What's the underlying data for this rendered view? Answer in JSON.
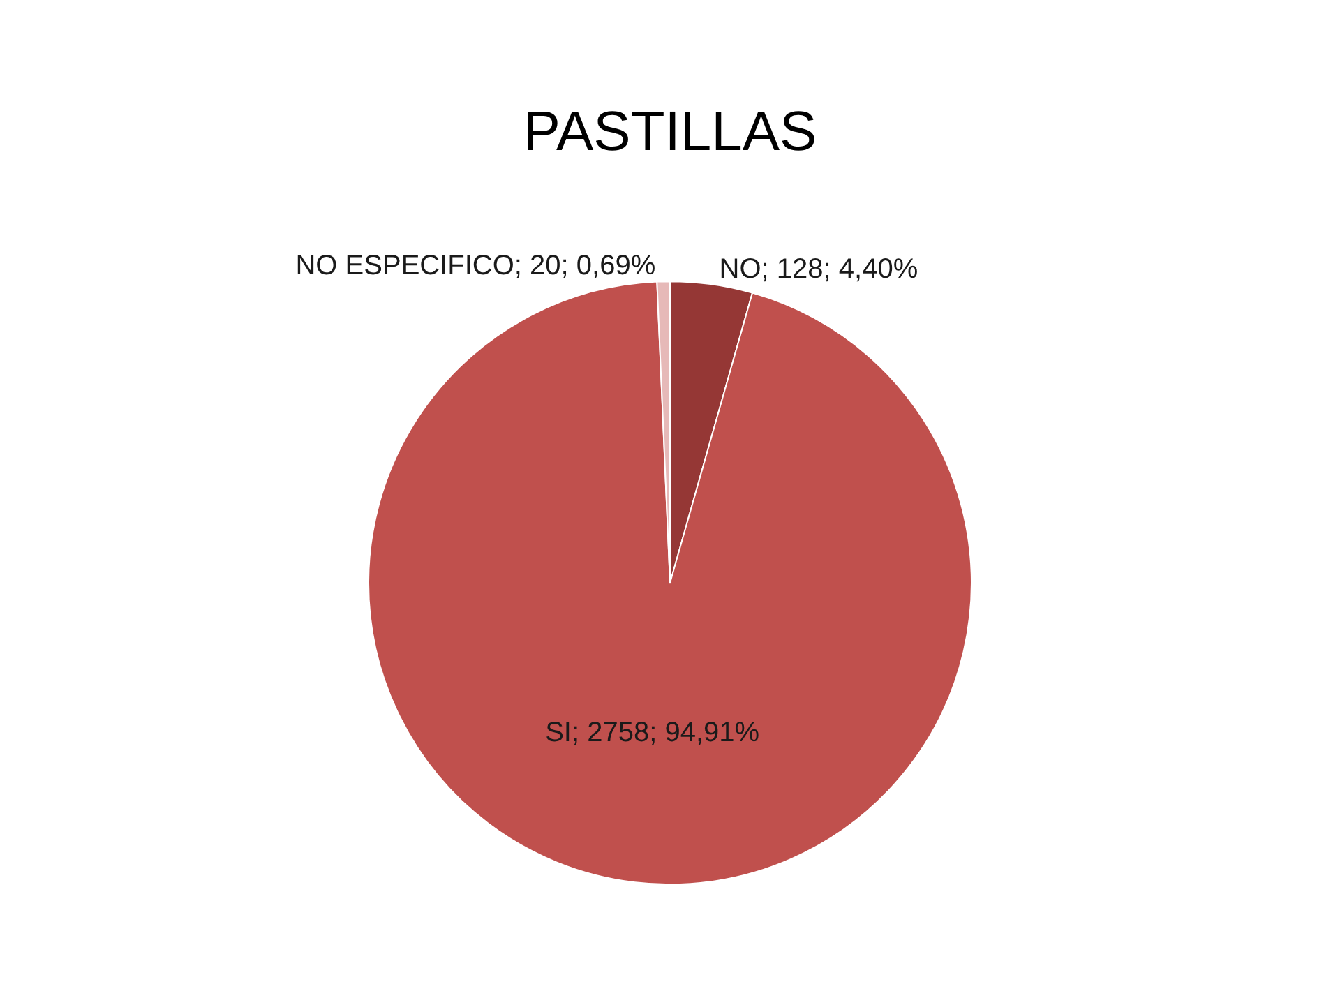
{
  "chart_data": {
    "type": "pie",
    "title": "PASTILLAS",
    "categories": [
      "NO",
      "SI",
      "NO ESPECIFICO"
    ],
    "values": [
      128,
      2758,
      20
    ],
    "colors": [
      "#953735",
      "#c0504d",
      "#e6b9b8"
    ],
    "value_labels": [
      "128; 4,40%",
      "2758; 94,91%",
      "20; 0,69%"
    ]
  }
}
